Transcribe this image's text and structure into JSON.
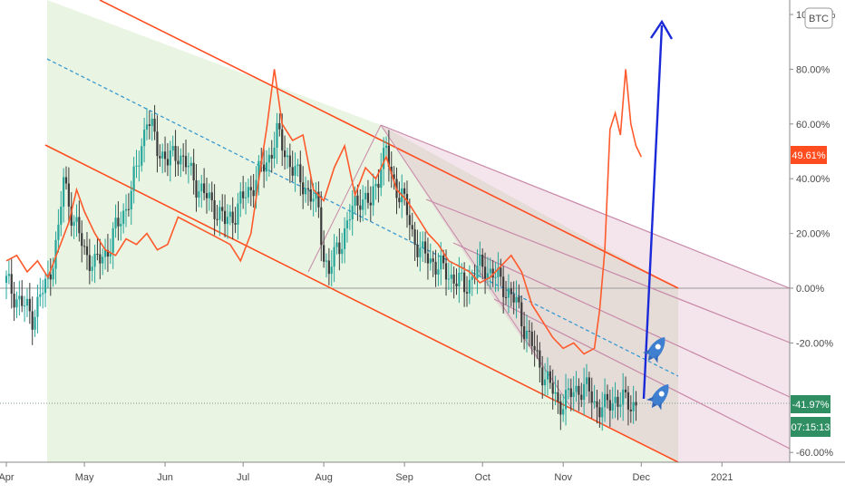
{
  "symbol_badge": "BTC",
  "chart_data": {
    "type": "line",
    "title": "",
    "x_axis": {
      "months": [
        "Apr",
        "May",
        "Jun",
        "Jul",
        "Aug",
        "Sep",
        "Oct",
        "Nov",
        "Dec",
        "2021"
      ],
      "month_day_index": [
        0,
        30,
        61,
        91,
        122,
        153,
        183,
        214,
        244,
        275
      ],
      "start": "2020-04-01",
      "end": "2021-01-29"
    },
    "y_axis": {
      "unit": "%",
      "ticks": [
        "100.00%",
        "80.00%",
        "60.00%",
        "40.00%",
        "20.00%",
        "0.00%",
        "-20.00%",
        "-60.00%"
      ],
      "tick_values": [
        100,
        80,
        60,
        40,
        20,
        0,
        -20,
        -60
      ],
      "range": [
        -62,
        104
      ]
    },
    "price_series": {
      "style": "candlestick",
      "up_color": "#26a69a",
      "down_color": "#3a3a3a",
      "points": [
        [
          0,
          2
        ],
        [
          6,
          -6
        ],
        [
          10,
          -10
        ],
        [
          16,
          3
        ],
        [
          20,
          20
        ],
        [
          22,
          40
        ],
        [
          26,
          24
        ],
        [
          30,
          14
        ],
        [
          34,
          8
        ],
        [
          40,
          16
        ],
        [
          44,
          26
        ],
        [
          48,
          34
        ],
        [
          50,
          44
        ],
        [
          54,
          62
        ],
        [
          58,
          52
        ],
        [
          62,
          46
        ],
        [
          66,
          50
        ],
        [
          72,
          40
        ],
        [
          76,
          34
        ],
        [
          80,
          30
        ],
        [
          84,
          24
        ],
        [
          88,
          28
        ],
        [
          92,
          34
        ],
        [
          96,
          40
        ],
        [
          100,
          46
        ],
        [
          104,
          56
        ],
        [
          108,
          48
        ],
        [
          112,
          40
        ],
        [
          116,
          36
        ],
        [
          120,
          28
        ],
        [
          122,
          12
        ],
        [
          124,
          6
        ],
        [
          128,
          16
        ],
        [
          132,
          26
        ],
        [
          136,
          34
        ],
        [
          140,
          30
        ],
        [
          144,
          46
        ],
        [
          146,
          50
        ],
        [
          148,
          40
        ],
        [
          152,
          34
        ],
        [
          156,
          20
        ],
        [
          160,
          12
        ],
        [
          164,
          10
        ],
        [
          168,
          6
        ],
        [
          172,
          4
        ],
        [
          176,
          0
        ],
        [
          180,
          6
        ],
        [
          184,
          8
        ],
        [
          188,
          4
        ],
        [
          192,
          0
        ],
        [
          196,
          -6
        ],
        [
          200,
          -16
        ],
        [
          204,
          -26
        ],
        [
          208,
          -34
        ],
        [
          212,
          -42
        ],
        [
          216,
          -40
        ],
        [
          220,
          -36
        ],
        [
          224,
          -38
        ],
        [
          226,
          -42
        ],
        [
          230,
          -44
        ],
        [
          234,
          -40
        ],
        [
          238,
          -42
        ],
        [
          242,
          -42
        ]
      ],
      "current_value": -41.97,
      "current_label": "-41.97%"
    },
    "comparison_series": {
      "name": "",
      "color": "#ff5a2c",
      "points": [
        [
          0,
          10
        ],
        [
          4,
          12
        ],
        [
          8,
          6
        ],
        [
          12,
          10
        ],
        [
          16,
          4
        ],
        [
          20,
          14
        ],
        [
          24,
          24
        ],
        [
          27,
          36
        ],
        [
          30,
          28
        ],
        [
          34,
          20
        ],
        [
          38,
          14
        ],
        [
          42,
          12
        ],
        [
          46,
          18
        ],
        [
          50,
          16
        ],
        [
          54,
          20
        ],
        [
          58,
          14
        ],
        [
          62,
          16
        ],
        [
          66,
          26
        ],
        [
          70,
          24
        ],
        [
          74,
          22
        ],
        [
          78,
          20
        ],
        [
          82,
          18
        ],
        [
          86,
          16
        ],
        [
          90,
          10
        ],
        [
          94,
          20
        ],
        [
          98,
          46
        ],
        [
          100,
          58
        ],
        [
          103,
          80
        ],
        [
          106,
          60
        ],
        [
          110,
          54
        ],
        [
          114,
          56
        ],
        [
          118,
          36
        ],
        [
          122,
          32
        ],
        [
          126,
          44
        ],
        [
          130,
          52
        ],
        [
          134,
          34
        ],
        [
          138,
          44
        ],
        [
          142,
          40
        ],
        [
          146,
          48
        ],
        [
          150,
          36
        ],
        [
          154,
          32
        ],
        [
          158,
          26
        ],
        [
          162,
          20
        ],
        [
          166,
          16
        ],
        [
          170,
          10
        ],
        [
          174,
          8
        ],
        [
          178,
          6
        ],
        [
          182,
          2
        ],
        [
          186,
          4
        ],
        [
          190,
          8
        ],
        [
          194,
          12
        ],
        [
          198,
          6
        ],
        [
          202,
          -6
        ],
        [
          206,
          -12
        ],
        [
          210,
          -18
        ],
        [
          214,
          -22
        ],
        [
          218,
          -20
        ],
        [
          222,
          -24
        ],
        [
          226,
          -22
        ],
        [
          228,
          -8
        ],
        [
          230,
          14
        ],
        [
          232,
          58
        ],
        [
          234,
          64
        ],
        [
          236,
          56
        ],
        [
          238,
          80
        ],
        [
          240,
          60
        ],
        [
          242,
          52
        ],
        [
          244,
          48
        ]
      ],
      "current_value": 49.61,
      "current_label": "49.61%"
    },
    "countdown_label": "07:15:13",
    "zero_line": 0,
    "grid": false,
    "legend": "none",
    "annotations": [
      {
        "kind": "descending-channel",
        "color": "#ff5a2c"
      },
      {
        "kind": "pitchfork",
        "color": "#b06a8a"
      },
      {
        "kind": "forecast-arrow",
        "color": "#1a2ad8"
      },
      {
        "kind": "rocket-icon"
      },
      {
        "kind": "rocket-icon"
      }
    ]
  }
}
